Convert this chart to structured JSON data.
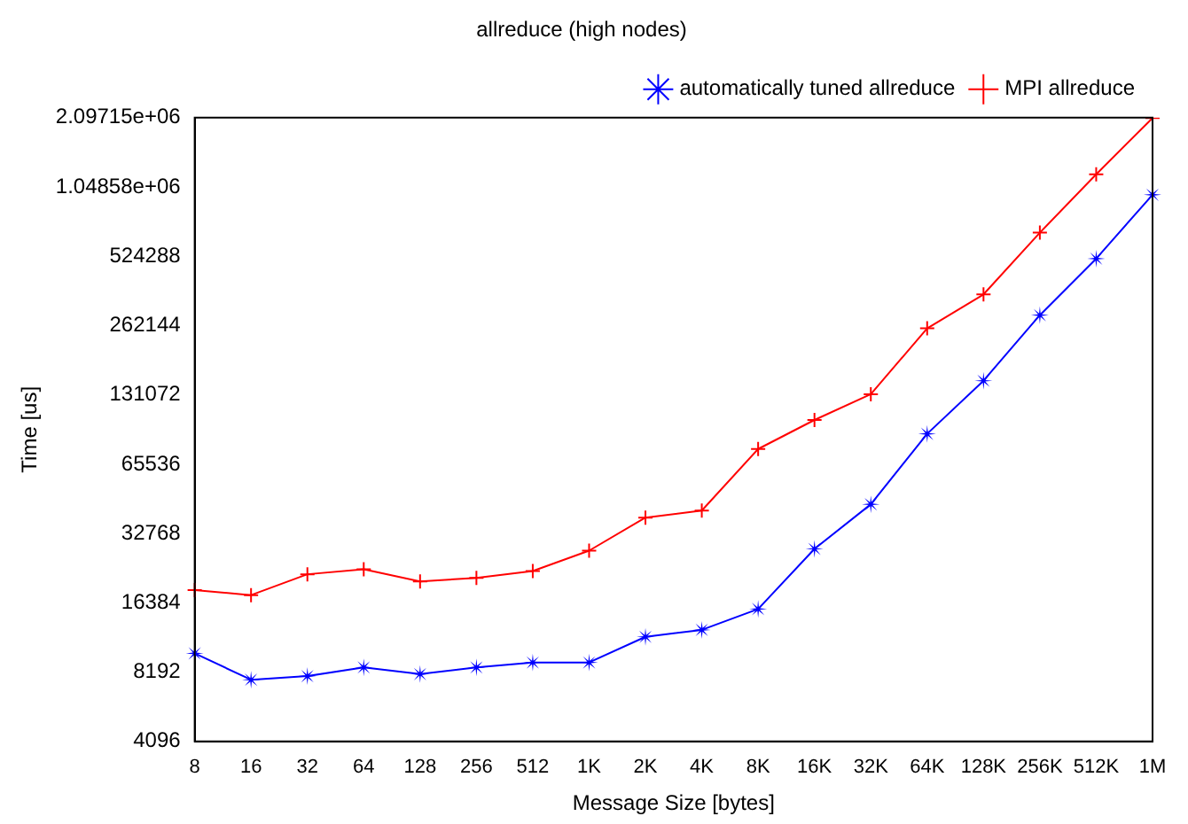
{
  "chart_data": {
    "type": "line",
    "title": "allreduce (high nodes)",
    "xlabel": "Message Size [bytes]",
    "ylabel": "Time [us]",
    "categories": [
      "8",
      "16",
      "32",
      "64",
      "128",
      "256",
      "512",
      "1K",
      "2K",
      "4K",
      "8K",
      "16K",
      "32K",
      "64K",
      "128K",
      "256K",
      "512K",
      "1M"
    ],
    "series": [
      {
        "name": "automatically tuned allreduce",
        "color": "#0000ff",
        "marker": "star",
        "values": [
          9880,
          7590,
          7870,
          8590,
          8030,
          8590,
          9020,
          9020,
          11660,
          12500,
          15400,
          28100,
          43900,
          88800,
          151000,
          291000,
          512000,
          970000
        ]
      },
      {
        "name": "MPI allreduce",
        "color": "#ff0000",
        "marker": "cross",
        "values": [
          18600,
          17700,
          21800,
          22900,
          20300,
          21000,
          22500,
          27600,
          38400,
          41200,
          76300,
          102000,
          132000,
          255000,
          358000,
          664000,
          1190000,
          2090000
        ]
      }
    ],
    "log": "y",
    "ylim": [
      4096,
      2097152
    ],
    "yticks": [
      4096,
      8192,
      16384,
      32768,
      65536,
      131072,
      262144,
      524288,
      {
        "value": 1048576,
        "label": "1.04858e+06"
      },
      {
        "value": 2097152,
        "label": "2.09715e+06"
      }
    ],
    "grid": false,
    "legend": "top right",
    "line_style": "solid"
  }
}
